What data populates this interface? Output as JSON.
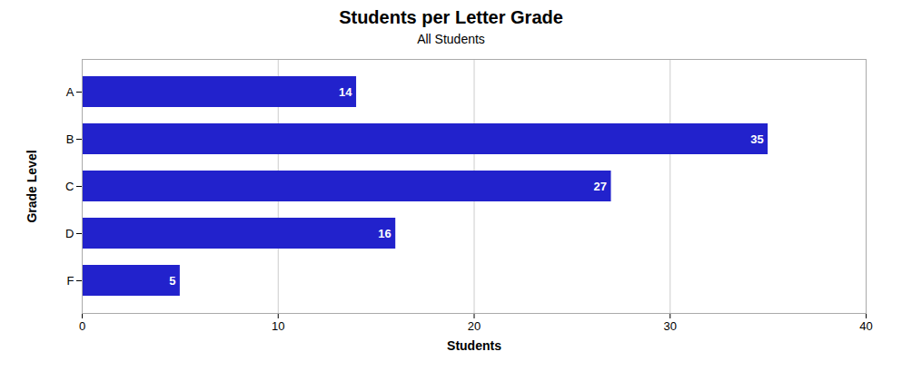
{
  "chart_data": {
    "type": "bar",
    "title": "Students per Letter Grade",
    "subtitle": "All Students",
    "categories": [
      "A",
      "B",
      "C",
      "D",
      "F"
    ],
    "values": [
      14,
      35,
      27,
      16,
      5
    ],
    "color": "#2222cc",
    "orientation": "horizontal",
    "xlabel": "Students",
    "ylabel": "Grade Level",
    "xlim": [
      0,
      40
    ],
    "xticks": [
      0,
      10,
      20,
      30,
      40
    ],
    "grid": true,
    "data_labels": true
  }
}
